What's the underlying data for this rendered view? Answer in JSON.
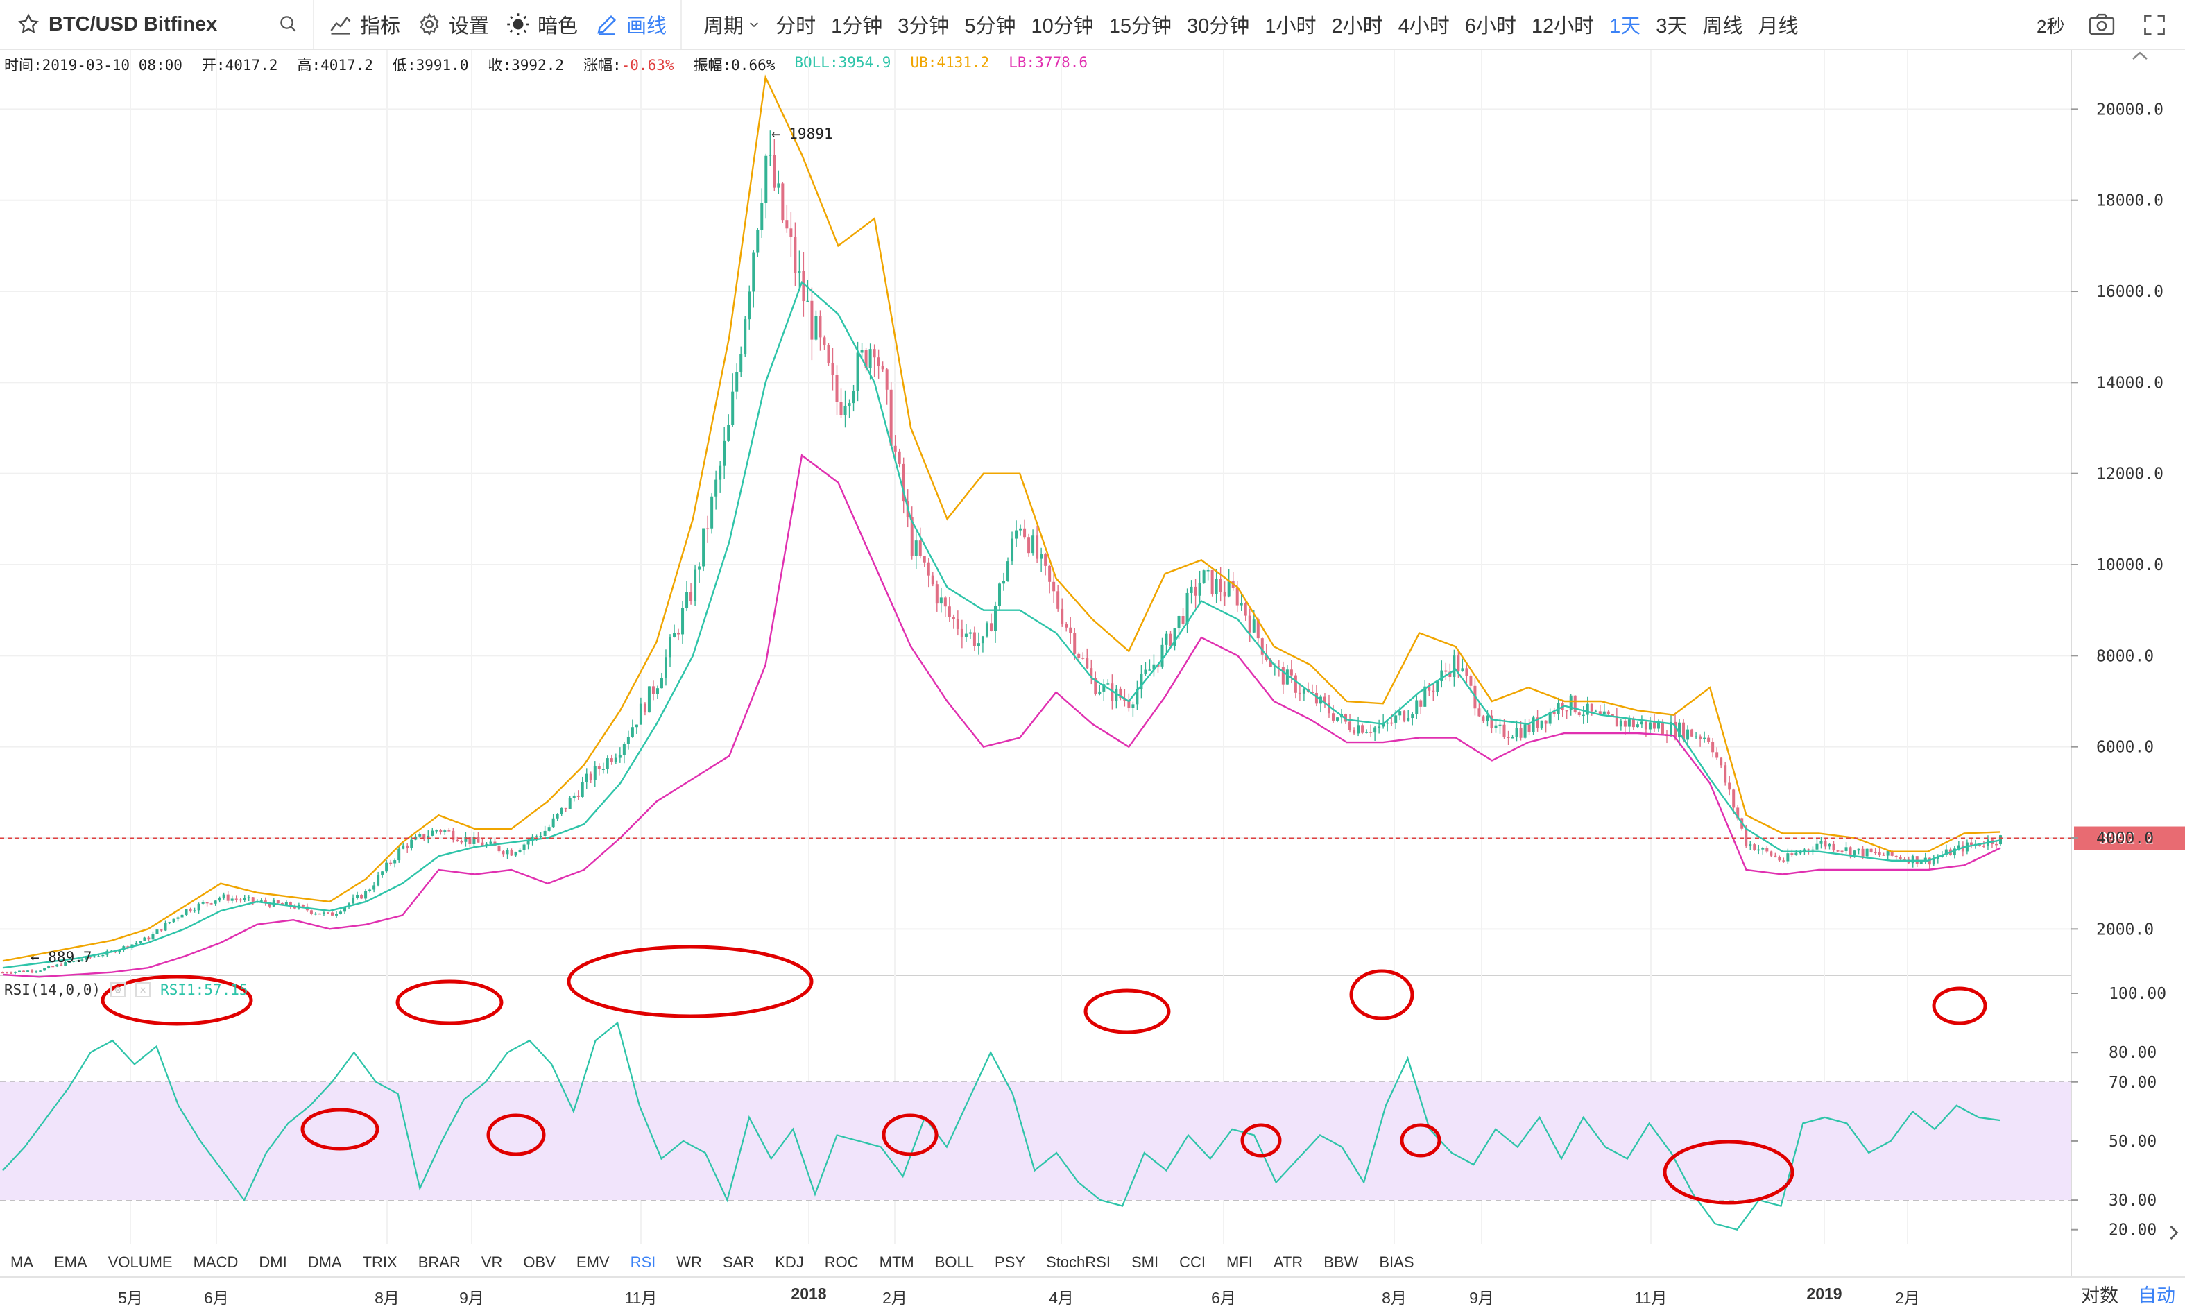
{
  "toolbar": {
    "symbol": "BTC/USD Bitfinex",
    "indicators_label": "指标",
    "settings_label": "设置",
    "dark_label": "暗色",
    "draw_label": "画线",
    "period_label": "周期",
    "periods": [
      "分时",
      "1分钟",
      "3分钟",
      "5分钟",
      "10分钟",
      "15分钟",
      "30分钟",
      "1小时",
      "2小时",
      "4小时",
      "6小时",
      "12小时",
      "1天",
      "3天",
      "周线",
      "月线"
    ],
    "active_period": "1天",
    "refresh": "2秒"
  },
  "infobar": {
    "time": "时间:2019-03-10 08:00",
    "open": "开:4017.2",
    "high": "高:4017.2",
    "low": "低:3991.0",
    "close": "收:3992.2",
    "change_label": "涨幅:",
    "change_value": "-0.63%",
    "amplitude": "振幅:0.66%",
    "boll": "BOLL:3954.9",
    "ub": "UB:4131.2",
    "lb": "LB:3778.6"
  },
  "colors": {
    "up": "#33b394",
    "down": "#e06e84",
    "boll": "#2ec4a9",
    "ub": "#f0a500",
    "lb": "#e030b0",
    "rsi": "#2ec4a9",
    "rsi_band": "#f1e4fb",
    "highlight_circle": "#e00000",
    "price_line": "#e04040",
    "accent": "#3b82f6"
  },
  "rsi_panel": {
    "label": "RSI(14,0,0)",
    "value_label": "RSI1:57.15"
  },
  "indicator_tabs": [
    "MA",
    "EMA",
    "VOLUME",
    "MACD",
    "DMI",
    "DMA",
    "TRIX",
    "BRAR",
    "VR",
    "OBV",
    "EMV",
    "RSI",
    "WR",
    "SAR",
    "KDJ",
    "ROC",
    "MTM",
    "BOLL",
    "PSY",
    "StochRSI",
    "SMI",
    "CCI",
    "MFI",
    "ATR",
    "BBW",
    "BIAS"
  ],
  "active_indicator": "RSI",
  "bottom_buttons": {
    "log": "对数",
    "auto": "自动"
  },
  "chart_data": [
    {
      "type": "line",
      "panel": "price",
      "x_labels": [
        "5月",
        "6月",
        "8月",
        "9月",
        "11月",
        "2018",
        "2月",
        "4月",
        "6月",
        "8月",
        "9月",
        "11月",
        "2019",
        "2月"
      ],
      "y_ticks": [
        2000,
        4000,
        6000,
        8000,
        10000,
        12000,
        14000,
        16000,
        18000,
        20000
      ],
      "ylim": [
        1000,
        21300
      ],
      "annotations": {
        "max_label": "19891",
        "min_label": "889.7",
        "last_price_label": "3992.2"
      },
      "last_price": 3992.2,
      "series": [
        {
          "name": "BOLL",
          "key": "mid",
          "values": [
            1150,
            1250,
            1350,
            1500,
            1700,
            2000,
            2400,
            2600,
            2500,
            2400,
            2600,
            3000,
            3600,
            3800,
            3900,
            4000,
            4300,
            5200,
            6500,
            8000,
            10500,
            14000,
            16200,
            15500,
            14000,
            11000,
            9500,
            9000,
            9000,
            8500,
            7500,
            7000,
            8000,
            9200,
            8800,
            7800,
            7200,
            6600,
            6500,
            7200,
            7700,
            6600,
            6500,
            6900,
            6700,
            6600,
            6500,
            5300,
            4200,
            3700,
            3700,
            3600,
            3500,
            3500,
            3800,
            3950
          ]
        },
        {
          "name": "UB",
          "key": "ub",
          "values": [
            1300,
            1450,
            1600,
            1750,
            2000,
            2500,
            3000,
            2800,
            2700,
            2600,
            3100,
            3900,
            4500,
            4200,
            4200,
            4800,
            5600,
            6800,
            8300,
            11000,
            15000,
            20700,
            19000,
            17000,
            17600,
            13000,
            11000,
            12000,
            12000,
            9700,
            8800,
            8100,
            9800,
            10100,
            9500,
            8200,
            7800,
            7000,
            6950,
            8500,
            8200,
            7000,
            7300,
            7000,
            7000,
            6800,
            6700,
            7300,
            4500,
            4100,
            4100,
            4000,
            3700,
            3700,
            4100,
            4131
          ]
        },
        {
          "name": "LB",
          "key": "lb",
          "values": [
            1000,
            950,
            1000,
            1050,
            1150,
            1400,
            1700,
            2100,
            2200,
            2000,
            2100,
            2300,
            3300,
            3200,
            3300,
            3000,
            3300,
            4000,
            4800,
            5300,
            5800,
            7800,
            12400,
            11800,
            10000,
            8200,
            7000,
            6000,
            6200,
            7200,
            6500,
            6000,
            7100,
            8400,
            8000,
            7000,
            6600,
            6100,
            6100,
            6200,
            6200,
            5700,
            6100,
            6300,
            6300,
            6300,
            6250,
            5200,
            3300,
            3200,
            3300,
            3300,
            3300,
            3300,
            3400,
            3779
          ]
        },
        {
          "name": "close",
          "key": "close",
          "values": [
            1050,
            1100,
            1300,
            1500,
            1800,
            2400,
            2700,
            2600,
            2500,
            2300,
            2800,
            3800,
            4200,
            3900,
            3700,
            4200,
            5200,
            6000,
            7400,
            9500,
            13000,
            19000,
            16000,
            13500,
            15000,
            10500,
            8900,
            8200,
            11000,
            9200,
            7400,
            7000,
            8200,
            9700,
            9300,
            7700,
            7100,
            6500,
            6400,
            7000,
            7900,
            6300,
            6400,
            7000,
            6600,
            6500,
            6400,
            6200,
            3900,
            3500,
            3900,
            3700,
            3600,
            3500,
            3800,
            3992
          ]
        }
      ]
    },
    {
      "type": "line",
      "panel": "rsi",
      "ylim": [
        15,
        100
      ],
      "y_ticks": [
        20,
        30,
        50,
        70,
        80,
        100
      ],
      "series": [
        {
          "name": "RSI1",
          "values": [
            40,
            48,
            58,
            68,
            80,
            84,
            76,
            82,
            62,
            50,
            40,
            30,
            46,
            56,
            62,
            70,
            80,
            70,
            66,
            34,
            50,
            64,
            70,
            80,
            84,
            76,
            60,
            84,
            90,
            62,
            44,
            50,
            46,
            30,
            58,
            44,
            54,
            32,
            52,
            50,
            48,
            38,
            58,
            48,
            64,
            80,
            66,
            40,
            46,
            36,
            30,
            28,
            46,
            40,
            52,
            44,
            54,
            52,
            36,
            44,
            52,
            48,
            36,
            62,
            78,
            54,
            46,
            42,
            54,
            48,
            58,
            44,
            58,
            48,
            44,
            56,
            46,
            32,
            22,
            20,
            30,
            28,
            56,
            58,
            56,
            46,
            50,
            60,
            54,
            62,
            58,
            57
          ]
        }
      ]
    }
  ]
}
